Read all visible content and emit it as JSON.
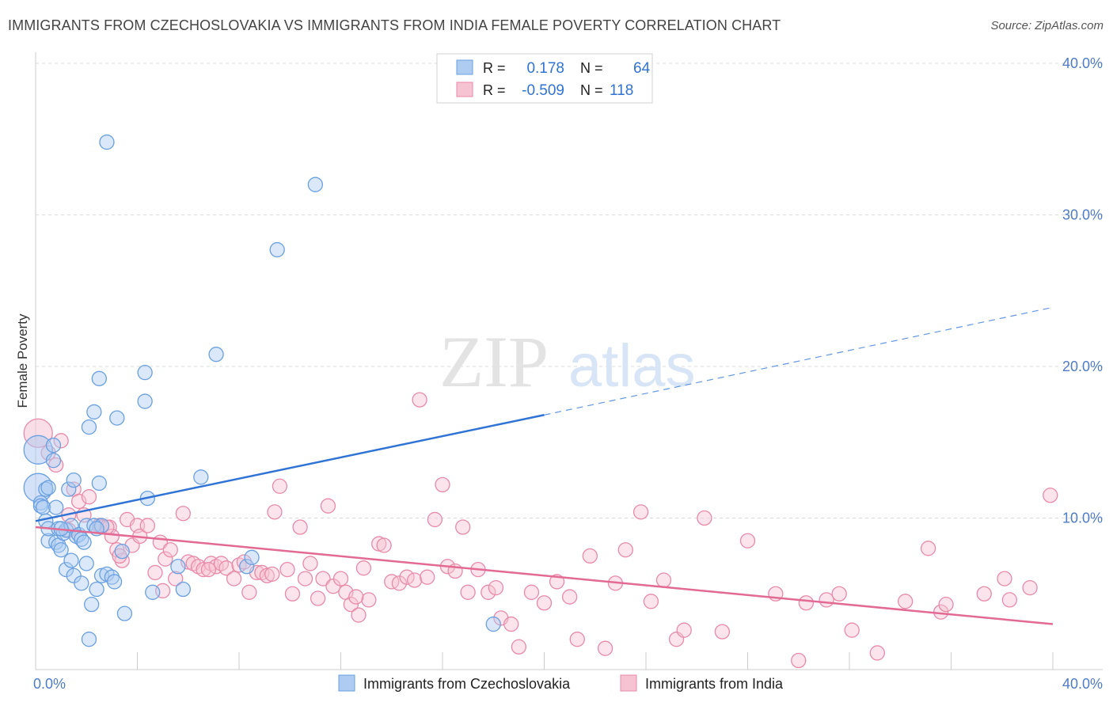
{
  "title": "IMMIGRANTS FROM CZECHOSLOVAKIA VS IMMIGRANTS FROM INDIA FEMALE POVERTY CORRELATION CHART",
  "source": "Source: ZipAtlas.com",
  "watermark": {
    "zip": "ZIP",
    "atlas": "atlas"
  },
  "colors": {
    "blue": "#6aa0e0",
    "blue_fill": "#aecbf2",
    "blue_line": "#2f73d4",
    "pink": "#e88aa8",
    "pink_fill": "#f6c3d3",
    "pink_line": "#e26a93",
    "tick": "#4f7cc7"
  },
  "legend": {
    "rows": [
      {
        "r_label": "R =",
        "r_value": "0.178",
        "n_label": "N =",
        "n_value": "64"
      },
      {
        "r_label": "R =",
        "r_value": "-0.509",
        "n_label": "N =",
        "n_value": "118"
      }
    ]
  },
  "bottom_legend": [
    "Immigrants from Czechoslovakia",
    "Immigrants from India"
  ],
  "chart_data": {
    "type": "scatter",
    "title": "IMMIGRANTS FROM CZECHOSLOVAKIA VS IMMIGRANTS FROM INDIA FEMALE POVERTY CORRELATION CHART",
    "xlabel": "",
    "ylabel": "Female Poverty",
    "xlim": [
      0,
      40
    ],
    "ylim": [
      0,
      40
    ],
    "x_tick_labels": [
      "0.0%",
      "40.0%"
    ],
    "y_ticks": [
      10,
      20,
      30,
      40
    ],
    "y_tick_labels": [
      "10.0%",
      "20.0%",
      "30.0%",
      "40.0%"
    ],
    "grid": "horizontal dashed",
    "legend_position": "top-center",
    "series": [
      {
        "name": "Immigrants from Czechoslovakia",
        "trend": {
          "x0": 0,
          "y0": 9.8,
          "x1": 20,
          "y1": 16.8,
          "dash_to_x": 40,
          "dash_to_y": 23.9
        },
        "points": [
          [
            0.1,
            14.5
          ],
          [
            0.1,
            12.0
          ],
          [
            0.2,
            11.0
          ],
          [
            0.2,
            10.8
          ],
          [
            0.3,
            10.7
          ],
          [
            0.4,
            9.8
          ],
          [
            0.4,
            11.9
          ],
          [
            0.5,
            12.0
          ],
          [
            0.5,
            8.5
          ],
          [
            0.5,
            9.3
          ],
          [
            0.7,
            14.8
          ],
          [
            0.7,
            13.8
          ],
          [
            0.8,
            8.4
          ],
          [
            0.8,
            10.7
          ],
          [
            0.9,
            9.3
          ],
          [
            0.9,
            8.2
          ],
          [
            1.0,
            7.9
          ],
          [
            1.1,
            9.0
          ],
          [
            1.2,
            9.2
          ],
          [
            1.2,
            6.6
          ],
          [
            1.3,
            11.9
          ],
          [
            1.4,
            9.5
          ],
          [
            1.4,
            7.2
          ],
          [
            1.5,
            12.5
          ],
          [
            1.5,
            6.2
          ],
          [
            1.6,
            8.8
          ],
          [
            1.7,
            8.9
          ],
          [
            1.8,
            8.6
          ],
          [
            1.8,
            5.7
          ],
          [
            1.9,
            8.4
          ],
          [
            2.0,
            9.5
          ],
          [
            2.0,
            7.0
          ],
          [
            2.1,
            16.0
          ],
          [
            2.1,
            2.0
          ],
          [
            2.2,
            4.3
          ],
          [
            2.3,
            17.0
          ],
          [
            2.3,
            9.5
          ],
          [
            2.4,
            5.3
          ],
          [
            2.5,
            19.2
          ],
          [
            2.5,
            12.3
          ],
          [
            2.6,
            6.2
          ],
          [
            2.6,
            9.5
          ],
          [
            2.8,
            34.8
          ],
          [
            2.8,
            6.3
          ],
          [
            3.0,
            6.1
          ],
          [
            3.1,
            5.8
          ],
          [
            3.2,
            16.6
          ],
          [
            3.4,
            7.8
          ],
          [
            3.5,
            3.7
          ],
          [
            4.3,
            19.6
          ],
          [
            4.3,
            17.7
          ],
          [
            4.4,
            11.3
          ],
          [
            4.6,
            5.1
          ],
          [
            5.6,
            6.8
          ],
          [
            5.8,
            5.3
          ],
          [
            6.5,
            12.7
          ],
          [
            7.1,
            20.8
          ],
          [
            8.3,
            6.8
          ],
          [
            8.5,
            7.4
          ],
          [
            9.5,
            27.7
          ],
          [
            11.0,
            32.0
          ],
          [
            18.0,
            3.0
          ],
          [
            1.0,
            9.3
          ],
          [
            2.4,
            9.3
          ]
        ]
      },
      {
        "name": "Immigrants from India",
        "trend": {
          "x0": 0,
          "y0": 9.4,
          "x1": 40,
          "y1": 3.0
        },
        "points": [
          [
            0.1,
            15.6
          ],
          [
            0.5,
            14.3
          ],
          [
            0.8,
            13.5
          ],
          [
            1.0,
            15.1
          ],
          [
            1.3,
            10.2
          ],
          [
            1.5,
            11.9
          ],
          [
            1.7,
            11.1
          ],
          [
            1.9,
            10.2
          ],
          [
            2.1,
            11.4
          ],
          [
            2.5,
            9.5
          ],
          [
            2.6,
            9.4
          ],
          [
            2.9,
            9.4
          ],
          [
            3.0,
            8.8
          ],
          [
            3.2,
            7.9
          ],
          [
            3.4,
            7.2
          ],
          [
            3.6,
            9.9
          ],
          [
            3.8,
            8.2
          ],
          [
            4.0,
            9.5
          ],
          [
            4.1,
            8.8
          ],
          [
            4.4,
            9.5
          ],
          [
            4.7,
            6.4
          ],
          [
            4.9,
            8.4
          ],
          [
            5.1,
            7.3
          ],
          [
            5.3,
            7.9
          ],
          [
            5.5,
            6.0
          ],
          [
            5.8,
            10.3
          ],
          [
            6.0,
            7.1
          ],
          [
            6.2,
            7.0
          ],
          [
            6.4,
            6.8
          ],
          [
            6.6,
            6.6
          ],
          [
            6.9,
            7.0
          ],
          [
            7.1,
            6.8
          ],
          [
            7.3,
            7.0
          ],
          [
            7.5,
            6.7
          ],
          [
            7.8,
            6.0
          ],
          [
            8.0,
            6.9
          ],
          [
            8.2,
            7.1
          ],
          [
            8.4,
            5.1
          ],
          [
            8.7,
            6.4
          ],
          [
            8.9,
            6.4
          ],
          [
            9.1,
            6.2
          ],
          [
            9.3,
            6.3
          ],
          [
            9.4,
            10.4
          ],
          [
            9.6,
            12.1
          ],
          [
            9.9,
            6.6
          ],
          [
            10.1,
            5.0
          ],
          [
            10.4,
            9.4
          ],
          [
            10.6,
            6.0
          ],
          [
            10.8,
            7.0
          ],
          [
            11.1,
            4.7
          ],
          [
            11.3,
            6.0
          ],
          [
            11.5,
            10.8
          ],
          [
            11.7,
            5.5
          ],
          [
            12.0,
            6.0
          ],
          [
            12.2,
            5.1
          ],
          [
            12.4,
            4.3
          ],
          [
            12.7,
            3.6
          ],
          [
            12.9,
            6.7
          ],
          [
            13.1,
            4.6
          ],
          [
            13.5,
            8.3
          ],
          [
            13.7,
            8.2
          ],
          [
            14.0,
            5.8
          ],
          [
            14.3,
            5.7
          ],
          [
            14.6,
            6.1
          ],
          [
            14.9,
            5.9
          ],
          [
            15.1,
            17.8
          ],
          [
            15.4,
            6.1
          ],
          [
            15.7,
            9.9
          ],
          [
            16.0,
            12.2
          ],
          [
            16.2,
            6.8
          ],
          [
            16.5,
            6.5
          ],
          [
            16.8,
            9.4
          ],
          [
            17.0,
            5.1
          ],
          [
            17.4,
            6.6
          ],
          [
            17.8,
            5.1
          ],
          [
            18.1,
            5.4
          ],
          [
            18.3,
            3.4
          ],
          [
            18.7,
            3.0
          ],
          [
            19.0,
            1.5
          ],
          [
            19.5,
            5.1
          ],
          [
            20.0,
            4.4
          ],
          [
            20.5,
            5.8
          ],
          [
            21.0,
            4.8
          ],
          [
            21.3,
            2.0
          ],
          [
            21.8,
            7.5
          ],
          [
            22.4,
            1.4
          ],
          [
            22.8,
            5.7
          ],
          [
            23.2,
            7.9
          ],
          [
            23.8,
            10.4
          ],
          [
            24.2,
            4.5
          ],
          [
            24.7,
            5.9
          ],
          [
            25.2,
            2.0
          ],
          [
            25.5,
            2.6
          ],
          [
            26.3,
            10.0
          ],
          [
            27.0,
            2.5
          ],
          [
            28.0,
            8.5
          ],
          [
            29.1,
            5.0
          ],
          [
            30.0,
            0.6
          ],
          [
            30.3,
            4.4
          ],
          [
            31.1,
            4.6
          ],
          [
            31.6,
            5.0
          ],
          [
            32.1,
            2.6
          ],
          [
            33.1,
            1.1
          ],
          [
            34.2,
            4.5
          ],
          [
            35.1,
            8.0
          ],
          [
            35.6,
            3.8
          ],
          [
            35.8,
            4.3
          ],
          [
            37.3,
            5.0
          ],
          [
            38.1,
            6.0
          ],
          [
            38.3,
            4.6
          ],
          [
            39.1,
            5.4
          ],
          [
            39.9,
            11.5
          ],
          [
            1.3,
            9.2
          ],
          [
            2.8,
            9.4
          ],
          [
            3.3,
            7.5
          ],
          [
            5.0,
            5.2
          ],
          [
            6.8,
            6.6
          ],
          [
            12.6,
            4.8
          ]
        ]
      }
    ]
  }
}
